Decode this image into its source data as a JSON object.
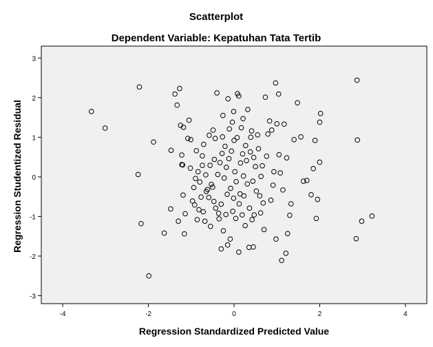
{
  "chart_data": {
    "type": "scatter",
    "title": "Scatterplot",
    "subtitle": "Dependent Variable: Kepatuhan Tata Tertib",
    "xlabel": "Regression Standardized Predicted Value",
    "ylabel": "Regression Studentized Residual",
    "xlim": [
      -4.5,
      4.5
    ],
    "ylim": [
      -3.2,
      3.3
    ],
    "xticks": [
      -4,
      -2,
      0,
      2,
      4
    ],
    "yticks": [
      -3,
      -2,
      -1,
      0,
      1,
      2,
      3
    ],
    "grid": false,
    "legend": "none",
    "colors": {
      "plot_bg": "#f0f0f0",
      "marker": "#000000",
      "frame": "#000000"
    },
    "points": [
      [
        -3.33,
        1.65
      ],
      [
        -3.01,
        1.23
      ],
      [
        -2.21,
        2.27
      ],
      [
        -2.24,
        0.06
      ],
      [
        -2.17,
        -1.18
      ],
      [
        -1.99,
        -2.5
      ],
      [
        -1.88,
        0.88
      ],
      [
        -1.63,
        -1.42
      ],
      [
        -1.48,
        -0.81
      ],
      [
        -1.47,
        0.67
      ],
      [
        -1.38,
        2.09
      ],
      [
        -1.33,
        1.81
      ],
      [
        -1.27,
        2.23
      ],
      [
        -1.25,
        1.3
      ],
      [
        -1.18,
        1.25
      ],
      [
        -1.22,
        0.55
      ],
      [
        -1.22,
        0.31
      ],
      [
        -1.2,
        0.3
      ],
      [
        -1.19,
        -0.46
      ],
      [
        -1.16,
        -1.44
      ],
      [
        -1.14,
        -0.93
      ],
      [
        -1.08,
        0.97
      ],
      [
        -1.05,
        1.43
      ],
      [
        -1.01,
        0.94
      ],
      [
        -0.97,
        -0.61
      ],
      [
        -0.94,
        -0.27
      ],
      [
        -0.9,
        -0.04
      ],
      [
        -0.88,
        0.66
      ],
      [
        -0.84,
        0.13
      ],
      [
        -0.82,
        -0.83
      ],
      [
        -0.8,
        -0.13
      ],
      [
        -0.77,
        -0.51
      ],
      [
        -0.74,
        0.53
      ],
      [
        -0.74,
        0.29
      ],
      [
        -0.71,
        0.82
      ],
      [
        -0.68,
        -1.12
      ],
      [
        -0.65,
        -0.37
      ],
      [
        -0.62,
        -0.32
      ],
      [
        -0.59,
        -0.52
      ],
      [
        -0.56,
        0.29
      ],
      [
        -0.53,
        -0.19
      ],
      [
        -0.5,
        -0.26
      ],
      [
        -0.49,
        1.18
      ],
      [
        -0.46,
        0.44
      ],
      [
        -0.43,
        -0.79
      ],
      [
        -0.4,
        2.12
      ],
      [
        -0.38,
        0.06
      ],
      [
        -0.35,
        -1.06
      ],
      [
        -0.33,
        0.36
      ],
      [
        -0.3,
        -0.69
      ],
      [
        -0.27,
        1.01
      ],
      [
        -0.25,
        -1.36
      ],
      [
        -0.21,
        0.77
      ],
      [
        -0.18,
        0.24
      ],
      [
        -0.16,
        -0.44
      ],
      [
        -0.14,
        1.97
      ],
      [
        -0.11,
        1.21
      ],
      [
        -0.09,
        -1.57
      ],
      [
        -0.06,
        0.65
      ],
      [
        -0.03,
        -0.87
      ],
      [
        -0.01,
        1.65
      ],
      [
        0.02,
        0.13
      ],
      [
        0.05,
        -0.12
      ],
      [
        0.08,
        2.1
      ],
      [
        0.11,
        2.04
      ],
      [
        0.14,
        -0.43
      ],
      [
        0.17,
        1.24
      ],
      [
        0.2,
        0.58
      ],
      [
        0.23,
        -0.48
      ],
      [
        0.26,
        -1.23
      ],
      [
        0.29,
        0.41
      ],
      [
        0.32,
        1.7
      ],
      [
        0.35,
        -1.78
      ],
      [
        0.38,
        0.63
      ],
      [
        0.41,
        1.16
      ],
      [
        0.44,
        -0.11
      ],
      [
        0.47,
        -0.96
      ],
      [
        0.5,
        0.26
      ],
      [
        0.55,
        1.06
      ],
      [
        0.6,
        -0.48
      ],
      [
        0.63,
        0.01
      ],
      [
        0.68,
        -0.66
      ],
      [
        0.73,
        2.01
      ],
      [
        0.76,
        0.52
      ],
      [
        0.83,
        1.41
      ],
      [
        0.88,
        1.18
      ],
      [
        0.93,
        0.13
      ],
      [
        0.97,
        2.37
      ],
      [
        1.0,
        1.34
      ],
      [
        1.04,
        2.09
      ],
      [
        1.08,
        0.1
      ],
      [
        1.11,
        -2.11
      ],
      [
        1.17,
        1.33
      ],
      [
        1.21,
        -1.93
      ],
      [
        1.25,
        -1.43
      ],
      [
        1.3,
        -0.97
      ],
      [
        1.4,
        0.94
      ],
      [
        1.48,
        1.87
      ],
      [
        1.62,
        -0.11
      ],
      [
        1.7,
        -0.09
      ],
      [
        1.8,
        -0.45
      ],
      [
        1.85,
        0.21
      ],
      [
        1.89,
        0.92
      ],
      [
        1.92,
        -1.05
      ],
      [
        1.95,
        -0.57
      ],
      [
        2.0,
        0.37
      ],
      [
        2.0,
        1.38
      ],
      [
        2.02,
        1.6
      ],
      [
        2.85,
        -1.56
      ],
      [
        2.87,
        2.44
      ],
      [
        2.88,
        0.93
      ],
      [
        2.98,
        -1.12
      ],
      [
        3.22,
        -0.99
      ],
      [
        -1.3,
        -1.12
      ],
      [
        -1.02,
        0.22
      ],
      [
        -0.92,
        -0.71
      ],
      [
        -0.86,
        -1.08
      ],
      [
        -0.72,
        -0.88
      ],
      [
        -0.66,
        0.05
      ],
      [
        -0.58,
        1.05
      ],
      [
        -0.55,
        -1.25
      ],
      [
        -0.47,
        -0.62
      ],
      [
        -0.44,
        0.97
      ],
      [
        -0.36,
        -0.92
      ],
      [
        -0.3,
        -1.82
      ],
      [
        -0.28,
        0.59
      ],
      [
        -0.23,
        -0.03
      ],
      [
        -0.19,
        -0.95
      ],
      [
        -0.12,
        0.46
      ],
      [
        -0.08,
        -0.29
      ],
      [
        -0.04,
        1.38
      ],
      [
        0.0,
        0.92
      ],
      [
        0.04,
        -1.05
      ],
      [
        0.07,
        0.99
      ],
      [
        0.12,
        -0.68
      ],
      [
        0.15,
        0.35
      ],
      [
        0.19,
        -0.96
      ],
      [
        0.22,
        0.02
      ],
      [
        0.27,
        0.79
      ],
      [
        0.31,
        -0.18
      ],
      [
        0.36,
        -0.79
      ],
      [
        0.39,
        1.0
      ],
      [
        0.42,
        -1.08
      ],
      [
        0.46,
        0.49
      ],
      [
        0.52,
        -0.36
      ],
      [
        0.57,
        0.71
      ],
      [
        0.62,
        -0.91
      ],
      [
        0.66,
        0.28
      ],
      [
        0.7,
        -1.33
      ],
      [
        0.79,
        1.08
      ],
      [
        0.86,
        -0.59
      ],
      [
        0.91,
        -0.21
      ],
      [
        0.98,
        -1.57
      ],
      [
        1.05,
        0.56
      ],
      [
        1.14,
        -0.33
      ],
      [
        1.23,
        0.48
      ],
      [
        1.33,
        -0.68
      ],
      [
        1.56,
        1.01
      ],
      [
        -0.15,
        -1.72
      ],
      [
        0.11,
        -1.9
      ],
      [
        0.21,
        1.47
      ],
      [
        -0.26,
        1.55
      ],
      [
        -0.01,
        -0.54
      ],
      [
        0.45,
        -1.77
      ]
    ]
  }
}
